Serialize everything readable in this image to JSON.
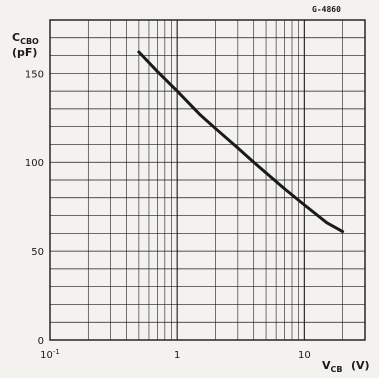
{
  "figure_id": "G-4860",
  "chart_data": {
    "type": "line",
    "title": "",
    "ylabel": {
      "main": "C",
      "sub": "CBO",
      "unit": "(pF)"
    },
    "xlabel": {
      "main": "V",
      "sub": "CB",
      "unit": "(V)"
    },
    "x_scale": "log",
    "xlim": [
      0.1,
      30
    ],
    "ylim": [
      0,
      180
    ],
    "grid": true,
    "x_tick_labels": [
      {
        "value": 0.1,
        "base": "10",
        "exp": "-1"
      },
      {
        "value": 1,
        "base": "1",
        "exp": ""
      },
      {
        "value": 10,
        "base": "10",
        "exp": ""
      }
    ],
    "y_tick_labels": [
      {
        "value": 0,
        "label": "0"
      },
      {
        "value": 50,
        "label": "50"
      },
      {
        "value": 100,
        "label": "100"
      },
      {
        "value": 150,
        "label": "150"
      }
    ],
    "series": [
      {
        "color": "#1a1a1a",
        "x": [
          0.5,
          0.7,
          1,
          1.5,
          2,
          3,
          4,
          5,
          7,
          10,
          15,
          20
        ],
        "y": [
          162,
          151,
          140,
          127,
          119,
          108,
          100,
          94,
          85,
          76,
          66,
          61
        ]
      }
    ]
  }
}
